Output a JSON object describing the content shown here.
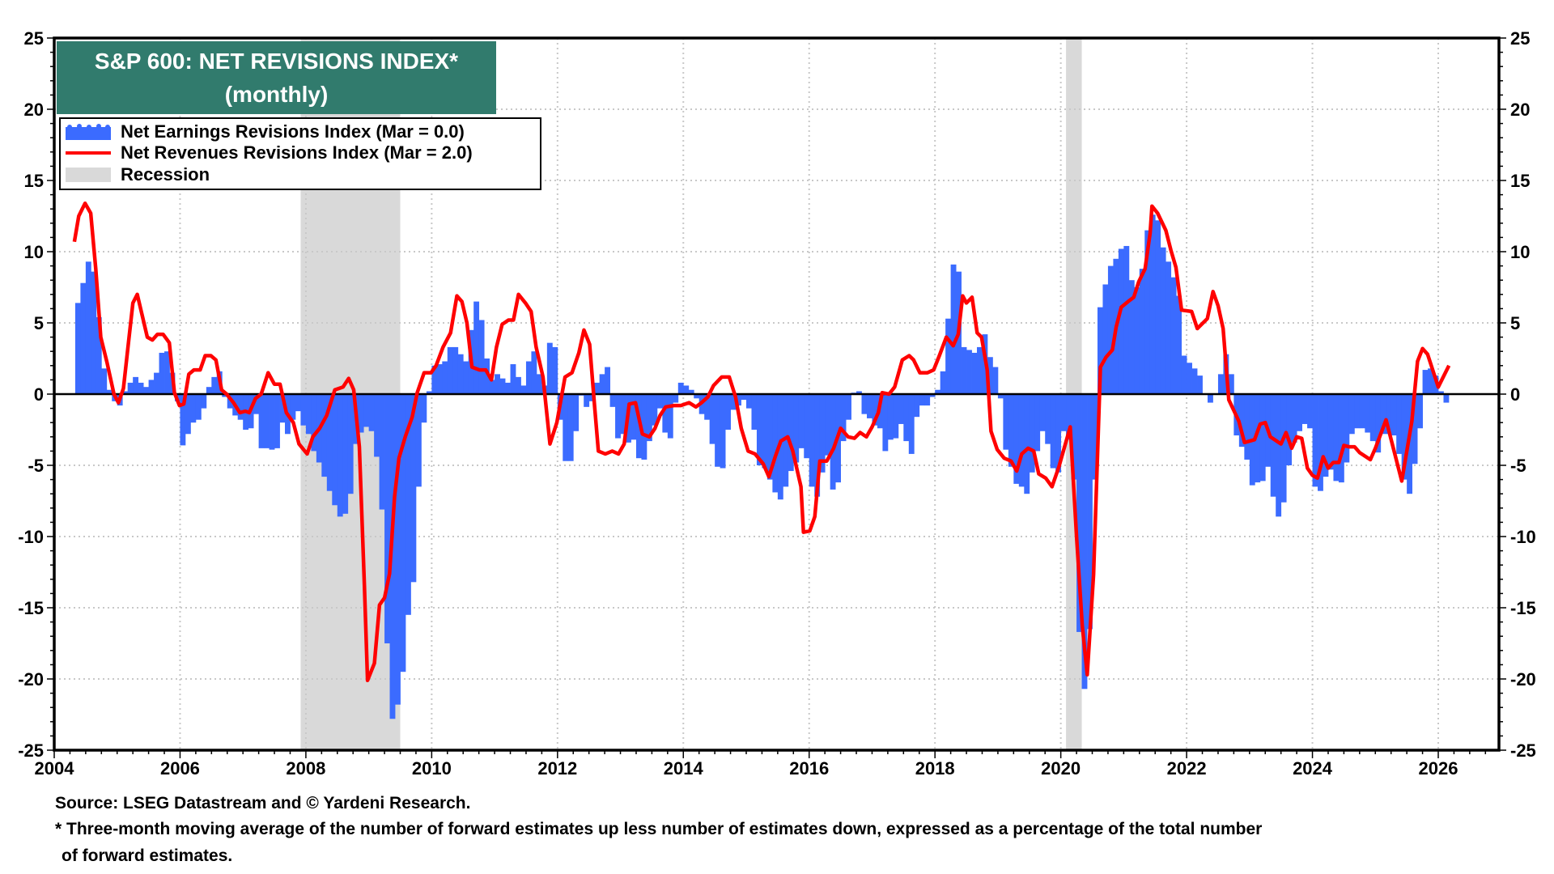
{
  "chart_data": {
    "type": "bar+line",
    "title": "S&P 600: NET REVISIONS INDEX*",
    "subtitle": "(monthly)",
    "ylim": [
      -25,
      25
    ],
    "xlim": [
      2004,
      2027
    ],
    "y_ticks": [
      "25",
      "20",
      "15",
      "10",
      "5",
      "0",
      "-5",
      "-10",
      "-15",
      "-20",
      "-25"
    ],
    "x_ticks": [
      "2004",
      "2006",
      "2008",
      "2010",
      "2012",
      "2014",
      "2016",
      "2018",
      "2020",
      "2022",
      "2024",
      "2026"
    ],
    "grid": true,
    "legend_position": "top-left",
    "colors": {
      "earnings": "#3b6bff",
      "revenues": "#ff0000",
      "recession": "#d9d9d9",
      "title_bg": "#317b6d"
    },
    "legend": [
      {
        "label": "Net Earnings Revisions Index (Mar  = 0.0)",
        "swatch": "bars"
      },
      {
        "label": "Net Revenues Revisions Index (Mar  = 2.0)",
        "swatch": "line"
      },
      {
        "label": "Recession",
        "swatch": "area"
      }
    ],
    "recessions": [
      [
        "2007-12",
        "2009-06"
      ],
      [
        "2020-02",
        "2020-04"
      ]
    ],
    "earnings_start": "2004-05",
    "earnings_monthly": [
      6.4,
      7.8,
      9.3,
      8.6,
      5.4,
      1.8,
      0.3,
      -0.5,
      -0.8,
      0.2,
      0.8,
      1.2,
      0.8,
      0.5,
      1.0,
      1.5,
      2.9,
      3.0,
      1.5,
      -0.5,
      -3.6,
      -2.8,
      -2.0,
      -1.8,
      -1.0,
      0.5,
      1.2,
      1.6,
      -0.2,
      -1.0,
      -1.5,
      -1.8,
      -2.5,
      -2.4,
      -1.4,
      -3.8,
      -3.8,
      -3.9,
      -3.8,
      -2.0,
      -2.8,
      -1.8,
      -1.2,
      -2.2,
      -2.8,
      -4.0,
      -4.8,
      -5.8,
      -6.8,
      -7.8,
      -8.6,
      -8.4,
      -7.0,
      -3.5,
      -2.7,
      -2.3,
      -2.6,
      -4.4,
      -8.1,
      -17.5,
      -22.8,
      -21.8,
      -19.5,
      -15.5,
      -13.2,
      -6.5,
      -2.0,
      0.2,
      2.0,
      2.1,
      2.3,
      3.3,
      3.3,
      2.8,
      2.3,
      4.5,
      6.5,
      5.2,
      2.5,
      1.0,
      1.4,
      1.1,
      0.8,
      2.1,
      1.2,
      0.6,
      2.3,
      3.0,
      1.4,
      0.6,
      3.6,
      3.3,
      -1.8,
      -4.7,
      -4.7,
      -2.6,
      -0.1,
      -0.9,
      -0.5,
      0.8,
      1.4,
      1.9,
      -0.9,
      -3.1,
      -2.8,
      -3.4,
      -3.2,
      -4.5,
      -4.6,
      -3.3,
      -2.2,
      -1.0,
      -2.7,
      -3.1,
      -0.6,
      0.8,
      0.6,
      0.3,
      -0.3,
      -1.4,
      -1.8,
      -3.5,
      -5.1,
      -5.2,
      -2.5,
      -1.1,
      -0.8,
      -0.4,
      -1.0,
      -2.5,
      -5.0,
      -5.2,
      -6.0,
      -6.9,
      -7.4,
      -6.5,
      -5.4,
      -4.8,
      -3.8,
      -4.5,
      -6.5,
      -7.2,
      -5.5,
      -4.3,
      -6.7,
      -6.2,
      -3.3,
      -1.8,
      0.1,
      0.2,
      -1.4,
      -1.7,
      -2.2,
      -2.4,
      -4.0,
      -3.2,
      -3.1,
      -2.1,
      -3.3,
      -4.2,
      -1.6,
      -0.8,
      -0.8,
      -0.2,
      0.3,
      1.6,
      5.3,
      9.1,
      8.6,
      3.3,
      3.1,
      2.9,
      3.3,
      4.2,
      2.6,
      1.9,
      -0.3,
      -3.9,
      -5.1,
      -6.3,
      -6.5,
      -7.0,
      -5.5,
      -4.0,
      -2.6,
      -3.5,
      -5.2,
      -5.5,
      -2.6,
      -3.2,
      -6.0,
      -16.7,
      -20.7,
      -16.5,
      -6.0,
      6.1,
      7.7,
      9.0,
      9.5,
      10.2,
      10.4,
      8.0,
      7.5,
      8.8,
      11.5,
      12.6,
      12.2,
      10.3,
      9.3,
      8.2,
      6.9,
      2.7,
      2.2,
      1.8,
      1.3,
      0.0,
      -0.6,
      0.0,
      1.4,
      2.8,
      1.4,
      -2.9,
      -3.7,
      -4.6,
      -6.4,
      -6.2,
      -6.1,
      -5.1,
      -7.2,
      -8.6,
      -7.6,
      -5.0,
      -3.4,
      -2.6,
      -2.1,
      -2.4,
      -6.5,
      -6.8,
      -5.8,
      -5.3,
      -6.1,
      -6.2,
      -4.8,
      -2.8,
      -2.4,
      -2.4,
      -2.7,
      -3.3,
      -4.1,
      -2.8,
      -2.8,
      -2.9,
      -4.2,
      -6.0,
      -7.0,
      -4.9,
      -2.4,
      1.7,
      1.8,
      1.3,
      0.2,
      -0.6,
      0.0
    ],
    "revenues_points": [
      [
        2004.32,
        10.7
      ],
      [
        2004.39,
        12.5
      ],
      [
        2004.49,
        13.4
      ],
      [
        2004.58,
        12.7
      ],
      [
        2004.66,
        8.8
      ],
      [
        2004.74,
        4.0
      ],
      [
        2004.84,
        2.2
      ],
      [
        2004.95,
        0
      ],
      [
        2005.02,
        -0.6
      ],
      [
        2005.1,
        0.4
      ],
      [
        2005.18,
        3.6
      ],
      [
        2005.25,
        6.4
      ],
      [
        2005.32,
        7.0
      ],
      [
        2005.4,
        5.5
      ],
      [
        2005.48,
        4.0
      ],
      [
        2005.56,
        3.8
      ],
      [
        2005.64,
        4.2
      ],
      [
        2005.73,
        4.2
      ],
      [
        2005.83,
        3.6
      ],
      [
        2005.91,
        0.1
      ],
      [
        2005.99,
        -0.8
      ],
      [
        2006.06,
        -0.7
      ],
      [
        2006.14,
        1.4
      ],
      [
        2006.22,
        1.7
      ],
      [
        2006.32,
        1.7
      ],
      [
        2006.4,
        2.7
      ],
      [
        2006.49,
        2.7
      ],
      [
        2006.57,
        2.4
      ],
      [
        2006.66,
        0.3
      ],
      [
        2006.74,
        0
      ],
      [
        2006.85,
        -0.6
      ],
      [
        2006.95,
        -1.3
      ],
      [
        2007.04,
        -1.2
      ],
      [
        2007.1,
        -1.3
      ],
      [
        2007.2,
        -0.3
      ],
      [
        2007.29,
        0
      ],
      [
        2007.4,
        1.5
      ],
      [
        2007.5,
        0.7
      ],
      [
        2007.59,
        0.7
      ],
      [
        2007.69,
        -1.3
      ],
      [
        2007.8,
        -2.0
      ],
      [
        2007.89,
        -3.5
      ],
      [
        2008.02,
        -4.2
      ],
      [
        2008.11,
        -3.0
      ],
      [
        2008.22,
        -2.4
      ],
      [
        2008.33,
        -1.5
      ],
      [
        2008.46,
        0.3
      ],
      [
        2008.59,
        0.5
      ],
      [
        2008.68,
        1.1
      ],
      [
        2008.76,
        0.3
      ],
      [
        2008.85,
        -3.7
      ],
      [
        2008.93,
        -13.4
      ],
      [
        2008.98,
        -20.1
      ],
      [
        2009.09,
        -18.9
      ],
      [
        2009.17,
        -14.8
      ],
      [
        2009.25,
        -14.3
      ],
      [
        2009.33,
        -12.6
      ],
      [
        2009.41,
        -7.2
      ],
      [
        2009.48,
        -4.5
      ],
      [
        2009.58,
        -3.0
      ],
      [
        2009.69,
        -1.6
      ],
      [
        2009.77,
        0.1
      ],
      [
        2009.88,
        1.5
      ],
      [
        2009.99,
        1.5
      ],
      [
        2010.07,
        2.0
      ],
      [
        2010.18,
        3.3
      ],
      [
        2010.3,
        4.3
      ],
      [
        2010.4,
        6.9
      ],
      [
        2010.48,
        6.5
      ],
      [
        2010.56,
        5.0
      ],
      [
        2010.64,
        1.9
      ],
      [
        2010.76,
        1.7
      ],
      [
        2010.86,
        1.7
      ],
      [
        2010.95,
        1.0
      ],
      [
        2011.03,
        3.3
      ],
      [
        2011.12,
        4.9
      ],
      [
        2011.22,
        5.2
      ],
      [
        2011.3,
        5.2
      ],
      [
        2011.38,
        7.0
      ],
      [
        2011.49,
        6.4
      ],
      [
        2011.58,
        5.8
      ],
      [
        2011.66,
        3.3
      ],
      [
        2011.77,
        1.2
      ],
      [
        2011.88,
        -3.5
      ],
      [
        2011.99,
        -2.0
      ],
      [
        2012.12,
        1.2
      ],
      [
        2012.23,
        1.5
      ],
      [
        2012.34,
        2.9
      ],
      [
        2012.42,
        4.5
      ],
      [
        2012.51,
        3.5
      ],
      [
        2012.59,
        -0.9
      ],
      [
        2012.65,
        -4.0
      ],
      [
        2012.76,
        -4.2
      ],
      [
        2012.87,
        -4.0
      ],
      [
        2012.97,
        -4.2
      ],
      [
        2013.06,
        -3.5
      ],
      [
        2013.14,
        -0.7
      ],
      [
        2013.24,
        -0.6
      ],
      [
        2013.35,
        -2.8
      ],
      [
        2013.46,
        -3.0
      ],
      [
        2013.55,
        -2.4
      ],
      [
        2013.63,
        -1.5
      ],
      [
        2013.72,
        -0.9
      ],
      [
        2013.85,
        -0.8
      ],
      [
        2013.96,
        -0.8
      ],
      [
        2014.09,
        -0.6
      ],
      [
        2014.2,
        -0.9
      ],
      [
        2014.29,
        -0.6
      ],
      [
        2014.39,
        -0.2
      ],
      [
        2014.48,
        0.6
      ],
      [
        2014.61,
        1.2
      ],
      [
        2014.73,
        1.2
      ],
      [
        2014.83,
        -0.2
      ],
      [
        2014.92,
        -2.4
      ],
      [
        2015.03,
        -4.0
      ],
      [
        2015.14,
        -4.2
      ],
      [
        2015.27,
        -4.9
      ],
      [
        2015.36,
        -5.8
      ],
      [
        2015.46,
        -4.4
      ],
      [
        2015.55,
        -3.3
      ],
      [
        2015.66,
        -3.0
      ],
      [
        2015.74,
        -4.0
      ],
      [
        2015.87,
        -6.5
      ],
      [
        2015.91,
        -9.7
      ],
      [
        2016.01,
        -9.6
      ],
      [
        2016.09,
        -8.6
      ],
      [
        2016.17,
        -4.7
      ],
      [
        2016.28,
        -4.7
      ],
      [
        2016.39,
        -3.8
      ],
      [
        2016.5,
        -2.4
      ],
      [
        2016.62,
        -3.0
      ],
      [
        2016.72,
        -3.1
      ],
      [
        2016.81,
        -2.7
      ],
      [
        2016.91,
        -3.0
      ],
      [
        2017.0,
        -2.3
      ],
      [
        2017.1,
        -1.3
      ],
      [
        2017.16,
        0.1
      ],
      [
        2017.27,
        0
      ],
      [
        2017.36,
        0.5
      ],
      [
        2017.48,
        2.4
      ],
      [
        2017.59,
        2.7
      ],
      [
        2017.66,
        2.4
      ],
      [
        2017.76,
        1.5
      ],
      [
        2017.88,
        1.5
      ],
      [
        2017.98,
        1.7
      ],
      [
        2018.07,
        2.7
      ],
      [
        2018.18,
        4.0
      ],
      [
        2018.29,
        3.4
      ],
      [
        2018.37,
        4.2
      ],
      [
        2018.44,
        6.9
      ],
      [
        2018.5,
        6.4
      ],
      [
        2018.59,
        6.8
      ],
      [
        2018.67,
        4.3
      ],
      [
        2018.74,
        4.0
      ],
      [
        2018.83,
        1.7
      ],
      [
        2018.89,
        -2.6
      ],
      [
        2018.99,
        -3.9
      ],
      [
        2019.1,
        -4.5
      ],
      [
        2019.21,
        -4.7
      ],
      [
        2019.3,
        -5.4
      ],
      [
        2019.38,
        -4.2
      ],
      [
        2019.48,
        -3.8
      ],
      [
        2019.57,
        -4.0
      ],
      [
        2019.65,
        -5.6
      ],
      [
        2019.76,
        -5.9
      ],
      [
        2019.86,
        -6.5
      ],
      [
        2019.97,
        -5.1
      ],
      [
        2020.06,
        -3.7
      ],
      [
        2020.15,
        -2.3
      ],
      [
        2020.25,
        -10.0
      ],
      [
        2020.34,
        -16.2
      ],
      [
        2020.42,
        -19.7
      ],
      [
        2020.52,
        -12.7
      ],
      [
        2020.63,
        1.9
      ],
      [
        2020.72,
        2.6
      ],
      [
        2020.82,
        3.1
      ],
      [
        2020.88,
        4.7
      ],
      [
        2020.96,
        6.1
      ],
      [
        2021.07,
        6.5
      ],
      [
        2021.16,
        6.8
      ],
      [
        2021.24,
        7.9
      ],
      [
        2021.34,
        8.8
      ],
      [
        2021.42,
        11.3
      ],
      [
        2021.45,
        13.2
      ],
      [
        2021.54,
        12.7
      ],
      [
        2021.67,
        11.5
      ],
      [
        2021.75,
        10.1
      ],
      [
        2021.83,
        8.9
      ],
      [
        2021.92,
        5.9
      ],
      [
        2022.08,
        5.8
      ],
      [
        2022.17,
        4.6
      ],
      [
        2022.33,
        5.3
      ],
      [
        2022.42,
        7.2
      ],
      [
        2022.5,
        6.2
      ],
      [
        2022.58,
        4.6
      ],
      [
        2022.67,
        -0.4
      ],
      [
        2022.83,
        -1.9
      ],
      [
        2022.92,
        -3.4
      ],
      [
        2023.08,
        -3.2
      ],
      [
        2023.17,
        -2.1
      ],
      [
        2023.25,
        -2.0
      ],
      [
        2023.33,
        -3.0
      ],
      [
        2023.5,
        -3.5
      ],
      [
        2023.58,
        -2.7
      ],
      [
        2023.67,
        -3.8
      ],
      [
        2023.75,
        -3.0
      ],
      [
        2023.83,
        -3.1
      ],
      [
        2023.92,
        -5.2
      ],
      [
        2024.0,
        -5.7
      ],
      [
        2024.08,
        -5.9
      ],
      [
        2024.17,
        -4.4
      ],
      [
        2024.25,
        -5.2
      ],
      [
        2024.33,
        -4.8
      ],
      [
        2024.42,
        -4.8
      ],
      [
        2024.5,
        -3.6
      ],
      [
        2024.58,
        -3.7
      ],
      [
        2024.67,
        -3.7
      ],
      [
        2024.75,
        -4.1
      ],
      [
        2024.92,
        -4.6
      ],
      [
        2025.0,
        -3.8
      ],
      [
        2025.17,
        -1.8
      ],
      [
        2025.42,
        -6.1
      ],
      [
        2025.58,
        -1.9
      ],
      [
        2025.67,
        2.3
      ],
      [
        2025.75,
        3.2
      ],
      [
        2025.83,
        2.8
      ],
      [
        2026.0,
        0.5
      ],
      [
        2026.17,
        2.0
      ]
    ]
  },
  "footer": {
    "source": "Source: LSEG Datastream and © Yardeni Research.",
    "note_line1": "* Three-month moving average of the number of forward estimates up less number of estimates down, expressed as a percentage of the total number",
    "note_line2": "of forward estimates."
  }
}
